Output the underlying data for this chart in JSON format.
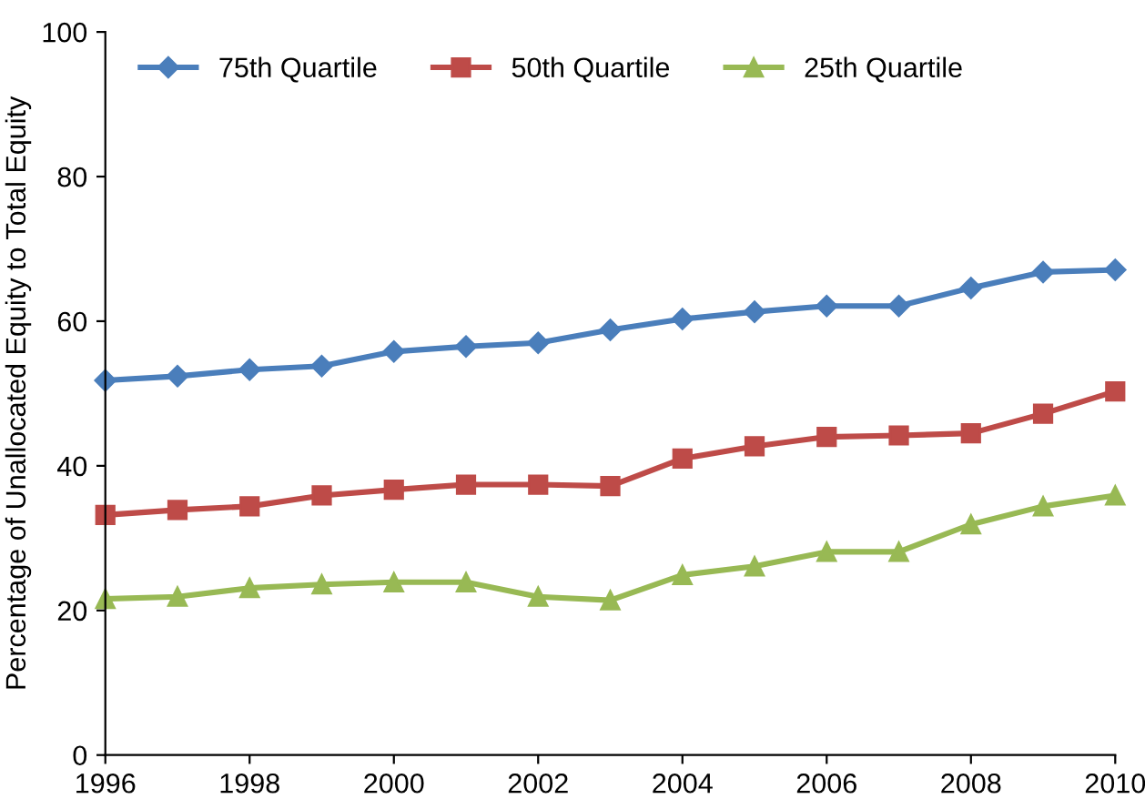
{
  "chart_data": {
    "type": "line",
    "ylabel": "Percentage of Unallocated Equity to Total Equity",
    "x": [
      1996,
      1997,
      1998,
      1999,
      2000,
      2001,
      2002,
      2003,
      2004,
      2005,
      2006,
      2007,
      2008,
      2009,
      2010
    ],
    "series": [
      {
        "name": "75th Quartile",
        "color": "#4a7ebb",
        "marker": "diamond",
        "values": [
          51.8,
          52.4,
          53.3,
          53.8,
          55.8,
          56.5,
          57.0,
          58.8,
          60.3,
          61.3,
          62.1,
          62.1,
          64.6,
          66.8,
          67.1
        ]
      },
      {
        "name": "50th Quartile",
        "color": "#be4b48",
        "marker": "square",
        "values": [
          33.2,
          33.9,
          34.4,
          35.9,
          36.7,
          37.4,
          37.4,
          37.2,
          41.0,
          42.7,
          44.0,
          44.2,
          44.5,
          47.2,
          50.3
        ]
      },
      {
        "name": "25th Quartile",
        "color": "#98b954",
        "marker": "triangle",
        "values": [
          21.6,
          21.9,
          23.1,
          23.6,
          23.9,
          23.9,
          21.9,
          21.4,
          24.9,
          26.1,
          28.1,
          28.1,
          31.9,
          34.4,
          35.9
        ]
      }
    ],
    "xlim": [
      1996,
      2010
    ],
    "xticks": [
      1996,
      1998,
      2000,
      2002,
      2004,
      2006,
      2008,
      2010
    ],
    "ylim": [
      0,
      100
    ],
    "yticks": [
      0,
      20,
      40,
      60,
      80,
      100
    ],
    "grid": false,
    "legend": "top left",
    "line_style": "solid"
  }
}
